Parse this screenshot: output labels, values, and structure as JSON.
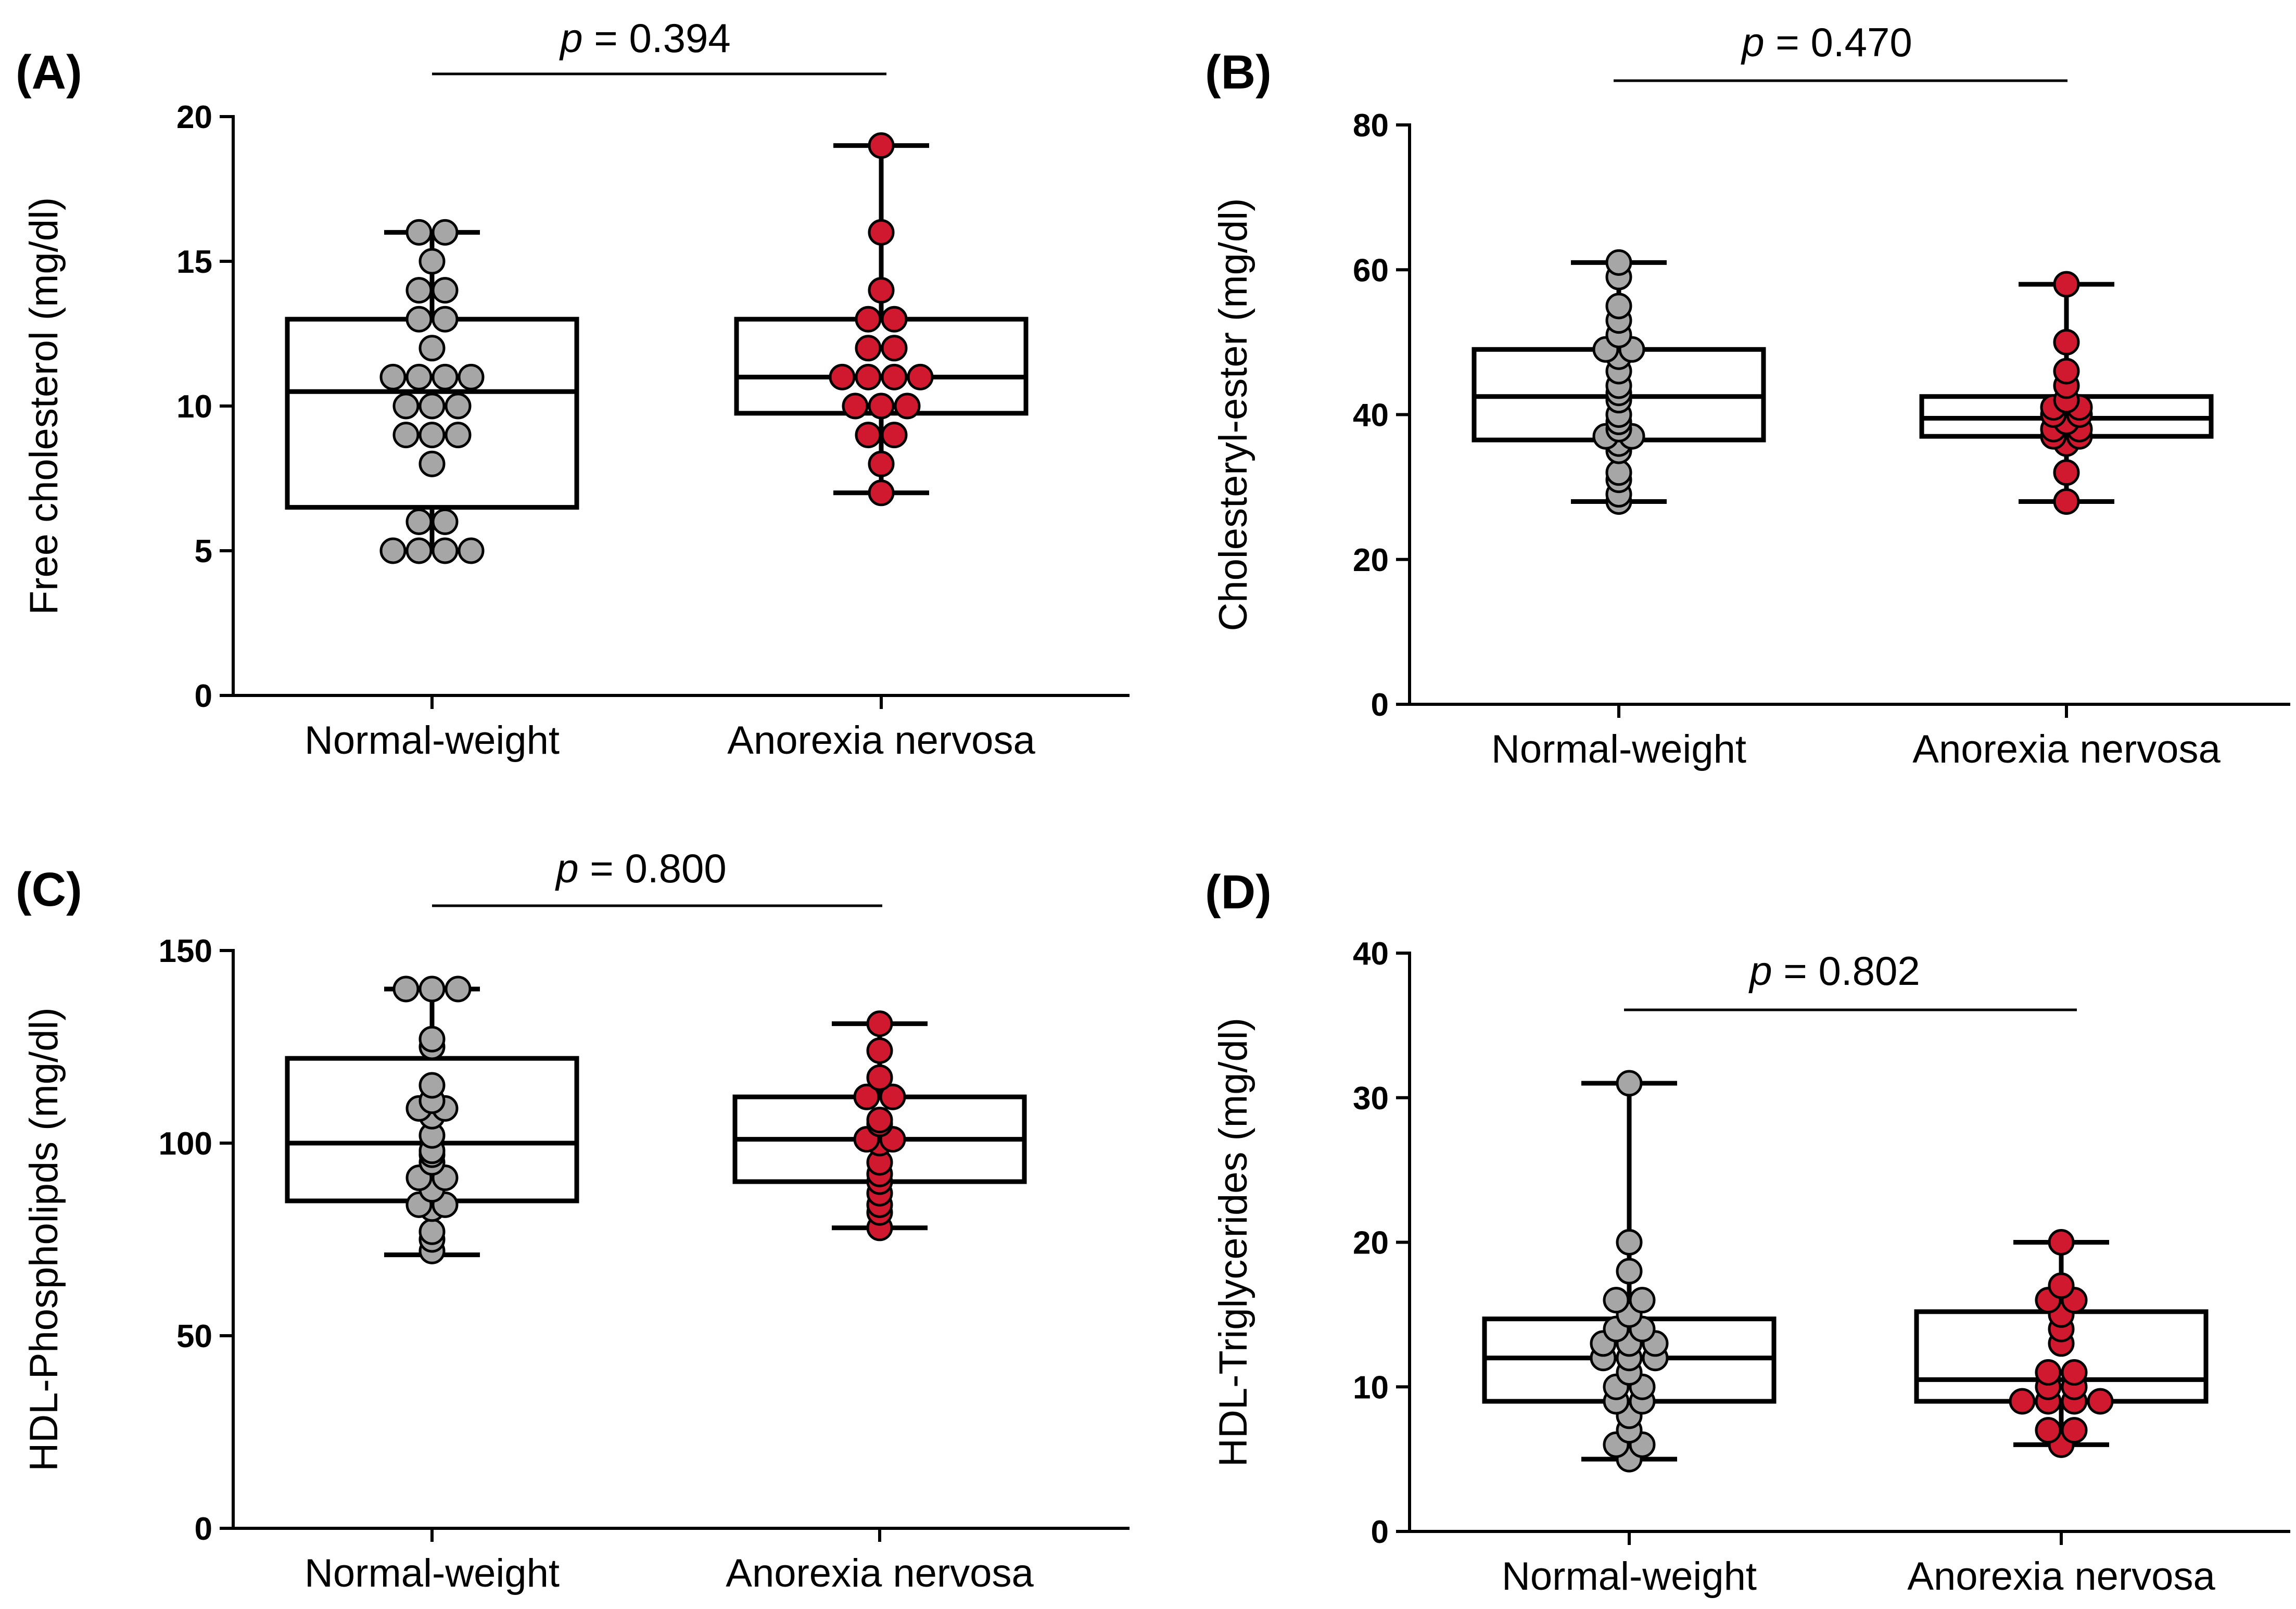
{
  "colors": {
    "normal": "#a6a6a6",
    "anorexia": "#d0182e"
  },
  "chart_data": [
    {
      "type": "box",
      "panel": "(A)",
      "ylabel": "Free cholesterol (mg/dl)",
      "ylim": [
        0,
        20
      ],
      "yticks": [
        0,
        5,
        10,
        15,
        20
      ],
      "categories": [
        "Normal-weight",
        "Anorexia nervosa"
      ],
      "p_label": "p",
      "p_value": "= 0.394",
      "series": [
        {
          "name": "Normal-weight",
          "color": "normal",
          "min": 5,
          "q1": 6.5,
          "median": 10.5,
          "q3": 13,
          "max": 16,
          "points": [
            16,
            16,
            15,
            14,
            14,
            13,
            13,
            12,
            11,
            11,
            11,
            11,
            10,
            10,
            10,
            9,
            9,
            9,
            8,
            6,
            6,
            5,
            5,
            5,
            5
          ]
        },
        {
          "name": "Anorexia nervosa",
          "color": "anorexia",
          "min": 7,
          "q1": 9.75,
          "median": 11,
          "q3": 13,
          "max": 19,
          "points": [
            19,
            16,
            14,
            13,
            13,
            12,
            12,
            11,
            11,
            11,
            11,
            10,
            10,
            10,
            9,
            9,
            8,
            7
          ]
        }
      ]
    },
    {
      "type": "box",
      "panel": "(B)",
      "ylabel": "Cholesteryl-ester (mg/dl)",
      "ylim": [
        0,
        80
      ],
      "yticks": [
        0,
        20,
        40,
        60,
        80
      ],
      "categories": [
        "Normal-weight",
        "Anorexia nervosa"
      ],
      "p_label": "p",
      "p_value": "= 0.470",
      "series": [
        {
          "name": "Normal-weight",
          "color": "normal",
          "min": 28,
          "q1": 36.5,
          "median": 42.5,
          "q3": 49,
          "max": 61,
          "points": [
            61,
            59,
            55,
            53,
            51,
            49,
            49,
            48,
            46,
            44,
            43,
            42,
            40,
            39,
            38,
            37,
            37,
            36,
            35,
            32,
            31,
            29,
            28
          ]
        },
        {
          "name": "Anorexia nervosa",
          "color": "anorexia",
          "min": 28,
          "q1": 37,
          "median": 39.5,
          "q3": 42.5,
          "max": 58,
          "points": [
            58,
            50,
            46,
            44,
            42,
            41,
            41,
            40,
            40,
            39,
            38,
            38,
            37,
            37,
            36,
            32,
            28
          ]
        }
      ]
    },
    {
      "type": "box",
      "panel": "(C)",
      "ylabel": "HDL-Phospholipds (mg/dl)",
      "ylim": [
        0,
        150
      ],
      "yticks": [
        0,
        50,
        100,
        150
      ],
      "categories": [
        "Normal-weight",
        "Anorexia nervosa"
      ],
      "p_label": "p",
      "p_value": "= 0.800",
      "series": [
        {
          "name": "Normal-weight",
          "color": "normal",
          "min": 71,
          "q1": 85,
          "median": 100,
          "q3": 122,
          "max": 140,
          "points": [
            140,
            140,
            140,
            127,
            125,
            115,
            111,
            109,
            109,
            107,
            102,
            98,
            97,
            95,
            91,
            91,
            88,
            84,
            84,
            83,
            77,
            75,
            72
          ]
        },
        {
          "name": "Anorexia nervosa",
          "color": "anorexia",
          "min": 78,
          "q1": 90,
          "median": 101,
          "q3": 112,
          "max": 131,
          "points": [
            131,
            124,
            117,
            112,
            112,
            106,
            105,
            101,
            101,
            100,
            95,
            92,
            90,
            87,
            84,
            82,
            78
          ]
        }
      ]
    },
    {
      "type": "box",
      "panel": "(D)",
      "ylabel": "HDL-Triglycerides (mg/dl)",
      "ylim": [
        0,
        40
      ],
      "yticks": [
        0,
        10,
        20,
        30,
        40
      ],
      "categories": [
        "Normal-weight",
        "Anorexia nervosa"
      ],
      "p_label": "p",
      "p_value": "= 0.802",
      "series": [
        {
          "name": "Normal-weight",
          "color": "normal",
          "min": 5,
          "q1": 9,
          "median": 12,
          "q3": 14.7,
          "max": 31,
          "points": [
            31,
            20,
            18,
            16,
            16,
            15,
            14,
            14,
            13,
            13,
            13,
            12,
            12,
            12,
            11,
            10,
            10,
            9,
            9,
            8,
            7,
            6,
            6,
            5
          ]
        },
        {
          "name": "Anorexia nervosa",
          "color": "anorexia",
          "min": 6,
          "q1": 9,
          "median": 10.5,
          "q3": 15.2,
          "max": 20,
          "points": [
            20,
            17,
            16,
            16,
            15,
            14,
            13,
            11,
            11,
            10,
            10,
            9,
            9,
            9,
            9,
            7,
            7,
            6
          ]
        }
      ]
    }
  ]
}
